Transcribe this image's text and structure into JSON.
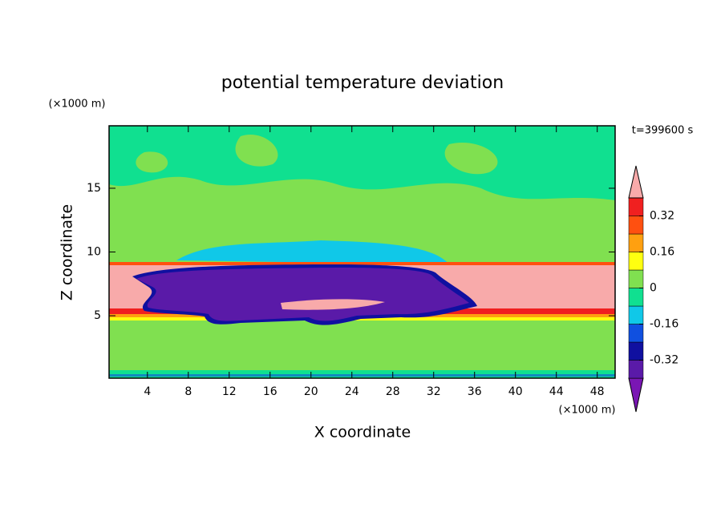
{
  "chart_data": {
    "type": "contour",
    "title": "potential temperature deviation",
    "x_label": "X coordinate",
    "y_label": "Z coordinate",
    "x_unit": "(×1000 m)",
    "y_unit": "(×1000 m)",
    "time_label": "t=399600 s",
    "xlim": [
      0.25,
      49.75
    ],
    "ylim": [
      0.1,
      19.9
    ],
    "xticks": [
      4,
      8,
      12,
      16,
      20,
      24,
      28,
      32,
      36,
      40,
      44,
      48
    ],
    "yticks": [
      5,
      10,
      15
    ],
    "levels": [
      -0.4,
      -0.32,
      -0.24,
      -0.16,
      -0.08,
      0,
      0.08,
      0.16,
      0.24,
      0.32,
      0.4
    ],
    "colors": [
      "#7a16b4",
      "#5a1aa8",
      "#1010a0",
      "#1050e0",
      "#10c8e8",
      "#10e090",
      "#80e050",
      "#ffff10",
      "#ffa010",
      "#ff5010",
      "#f02020",
      "#f8aaaa"
    ],
    "colorbar_ticks": [
      0.32,
      0.16,
      0,
      -0.16,
      -0.32
    ]
  }
}
